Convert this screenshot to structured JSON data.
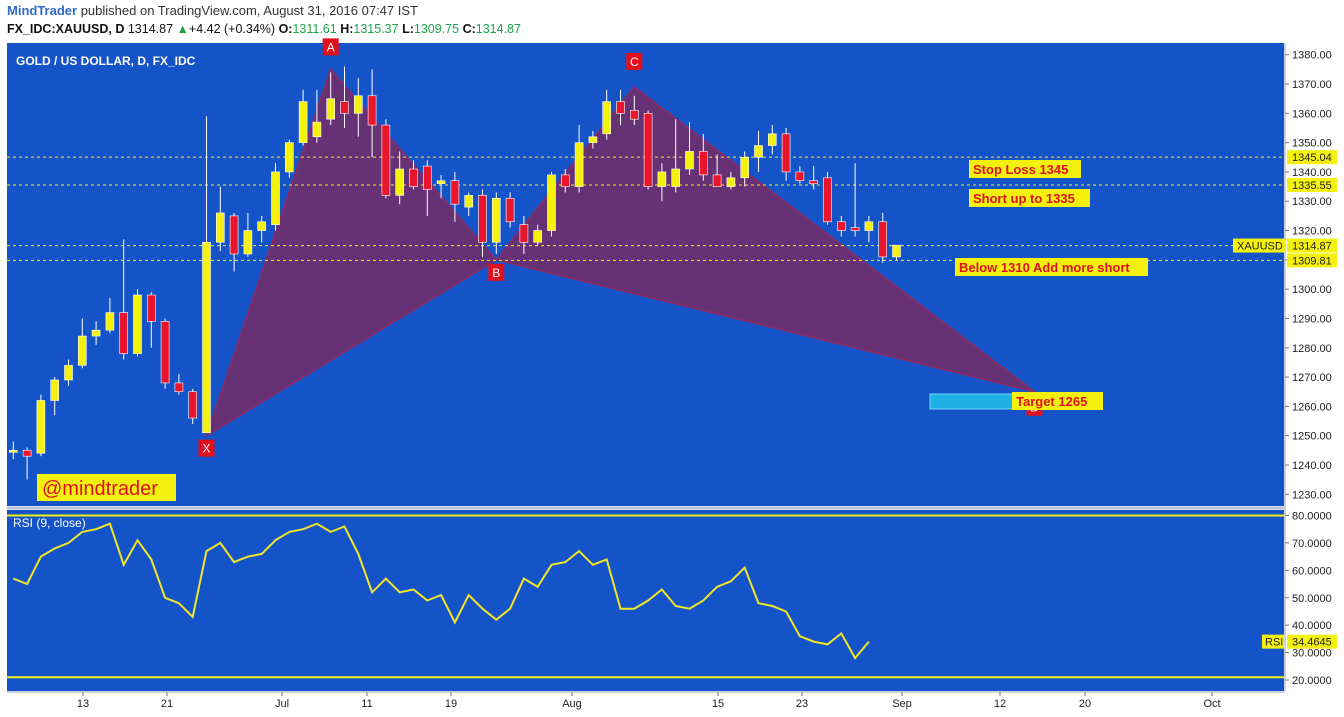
{
  "header": {
    "author": "MindTrader",
    "published_text": "published on TradingView.com, August 31, 2016 07:47 IST",
    "symbol": "FX_IDC:XAUUSD, D",
    "last": "1314.87",
    "change": "+4.42 (+0.34%)",
    "o_label": "O:",
    "o_value": "1311.61",
    "h_label": "H:",
    "h_value": "1315.37",
    "l_label": "L:",
    "l_value": "1309.75",
    "c_label": "C:",
    "c_value": "1314.87"
  },
  "colors": {
    "background": "#1553c8",
    "bull_candle": "#f5f10f",
    "bear_candle": "#e8152d",
    "pattern_fill": "#7a2b63",
    "rsi_line": "#f2e628",
    "label_bg": "#f5f10f",
    "label_text": "#e0101e"
  },
  "chart_data": [
    {
      "type": "candlestick",
      "title": "GOLD / US DOLLAR, D, FX_IDC",
      "ylim": [
        1226,
        1384
      ],
      "y_ticks": [
        1230,
        1240,
        1250,
        1260,
        1270,
        1280,
        1290,
        1300,
        1310,
        1320,
        1330,
        1340,
        1350,
        1360,
        1370,
        1380
      ],
      "x_tick_labels": [
        "13",
        "21",
        "Jul",
        "11",
        "19",
        "Aug",
        "15",
        "23",
        "Sep",
        "12",
        "20",
        "Oct"
      ],
      "candles": [
        {
          "o": 1245,
          "h": 1248,
          "l": 1242,
          "c": 1245
        },
        {
          "o": 1245,
          "h": 1246,
          "l": 1235,
          "c": 1243
        },
        {
          "o": 1244,
          "h": 1264,
          "l": 1243,
          "c": 1262
        },
        {
          "o": 1262,
          "h": 1270,
          "l": 1257,
          "c": 1269
        },
        {
          "o": 1269,
          "h": 1276,
          "l": 1267,
          "c": 1274
        },
        {
          "o": 1274,
          "h": 1290,
          "l": 1273,
          "c": 1284
        },
        {
          "o": 1284,
          "h": 1289,
          "l": 1281,
          "c": 1286
        },
        {
          "o": 1286,
          "h": 1297,
          "l": 1285,
          "c": 1292
        },
        {
          "o": 1292,
          "h": 1317,
          "l": 1276,
          "c": 1278
        },
        {
          "o": 1278,
          "h": 1300,
          "l": 1277,
          "c": 1298
        },
        {
          "o": 1298,
          "h": 1299,
          "l": 1280,
          "c": 1289
        },
        {
          "o": 1289,
          "h": 1290,
          "l": 1266,
          "c": 1268
        },
        {
          "o": 1268,
          "h": 1271,
          "l": 1264,
          "c": 1265
        },
        {
          "o": 1265,
          "h": 1266,
          "l": 1254,
          "c": 1256
        },
        {
          "o": 1251,
          "h": 1359,
          "l": 1251,
          "c": 1316
        },
        {
          "o": 1316,
          "h": 1335,
          "l": 1313,
          "c": 1326
        },
        {
          "o": 1325,
          "h": 1326,
          "l": 1306,
          "c": 1312
        },
        {
          "o": 1312,
          "h": 1326,
          "l": 1311,
          "c": 1320
        },
        {
          "o": 1320,
          "h": 1325,
          "l": 1316,
          "c": 1323
        },
        {
          "o": 1322,
          "h": 1343,
          "l": 1320,
          "c": 1340
        },
        {
          "o": 1340,
          "h": 1351,
          "l": 1338,
          "c": 1350
        },
        {
          "o": 1350,
          "h": 1368,
          "l": 1349,
          "c": 1364
        },
        {
          "o": 1352,
          "h": 1368,
          "l": 1350,
          "c": 1357
        },
        {
          "o": 1358,
          "h": 1374,
          "l": 1356,
          "c": 1365
        },
        {
          "o": 1364,
          "h": 1376,
          "l": 1355,
          "c": 1360
        },
        {
          "o": 1360,
          "h": 1372,
          "l": 1352,
          "c": 1366
        },
        {
          "o": 1366,
          "h": 1375,
          "l": 1345,
          "c": 1356
        },
        {
          "o": 1356,
          "h": 1358,
          "l": 1331,
          "c": 1332
        },
        {
          "o": 1332,
          "h": 1347,
          "l": 1329,
          "c": 1341
        },
        {
          "o": 1341,
          "h": 1344,
          "l": 1334,
          "c": 1335
        },
        {
          "o": 1342,
          "h": 1344,
          "l": 1325,
          "c": 1334
        },
        {
          "o": 1336,
          "h": 1339,
          "l": 1331,
          "c": 1337
        },
        {
          "o": 1337,
          "h": 1340,
          "l": 1323,
          "c": 1329
        },
        {
          "o": 1328,
          "h": 1333,
          "l": 1325,
          "c": 1332
        },
        {
          "o": 1332,
          "h": 1334,
          "l": 1311,
          "c": 1316
        },
        {
          "o": 1316,
          "h": 1333,
          "l": 1312,
          "c": 1331
        },
        {
          "o": 1331,
          "h": 1333,
          "l": 1321,
          "c": 1323
        },
        {
          "o": 1322,
          "h": 1325,
          "l": 1312,
          "c": 1316
        },
        {
          "o": 1316,
          "h": 1322,
          "l": 1315,
          "c": 1320
        },
        {
          "o": 1320,
          "h": 1340,
          "l": 1318,
          "c": 1339
        },
        {
          "o": 1339,
          "h": 1341,
          "l": 1333,
          "c": 1335
        },
        {
          "o": 1335,
          "h": 1356,
          "l": 1333,
          "c": 1350
        },
        {
          "o": 1350,
          "h": 1354,
          "l": 1348,
          "c": 1352
        },
        {
          "o": 1353,
          "h": 1368,
          "l": 1351,
          "c": 1364
        },
        {
          "o": 1364,
          "h": 1368,
          "l": 1356,
          "c": 1360
        },
        {
          "o": 1361,
          "h": 1366,
          "l": 1356,
          "c": 1358
        },
        {
          "o": 1360,
          "h": 1361,
          "l": 1334,
          "c": 1335
        },
        {
          "o": 1335,
          "h": 1343,
          "l": 1330,
          "c": 1340
        },
        {
          "o": 1335,
          "h": 1358,
          "l": 1333,
          "c": 1341
        },
        {
          "o": 1341,
          "h": 1357,
          "l": 1339,
          "c": 1347
        },
        {
          "o": 1347,
          "h": 1353,
          "l": 1337,
          "c": 1339
        },
        {
          "o": 1339,
          "h": 1346,
          "l": 1335,
          "c": 1335
        },
        {
          "o": 1335,
          "h": 1340,
          "l": 1334,
          "c": 1338
        },
        {
          "o": 1338,
          "h": 1347,
          "l": 1335,
          "c": 1345
        },
        {
          "o": 1345,
          "h": 1354,
          "l": 1340,
          "c": 1349
        },
        {
          "o": 1349,
          "h": 1356,
          "l": 1346,
          "c": 1353
        },
        {
          "o": 1353,
          "h": 1355,
          "l": 1337,
          "c": 1340
        },
        {
          "o": 1340,
          "h": 1342,
          "l": 1336,
          "c": 1337
        },
        {
          "o": 1337,
          "h": 1342,
          "l": 1334,
          "c": 1336
        },
        {
          "o": 1338,
          "h": 1340,
          "l": 1322,
          "c": 1323
        },
        {
          "o": 1323,
          "h": 1325,
          "l": 1318,
          "c": 1320
        },
        {
          "o": 1321,
          "h": 1343,
          "l": 1318,
          "c": 1320
        },
        {
          "o": 1320,
          "h": 1325,
          "l": 1316,
          "c": 1323
        },
        {
          "o": 1323,
          "h": 1326,
          "l": 1309,
          "c": 1311
        },
        {
          "o": 1311,
          "h": 1315,
          "l": 1310,
          "c": 1315
        }
      ],
      "pattern_points": {
        "X": {
          "i": 14,
          "price": 1250
        },
        "A": {
          "i": 23,
          "price": 1375
        },
        "B": {
          "i": 35,
          "price": 1310
        },
        "C": {
          "i": 45,
          "price": 1369
        },
        "D": {
          "i": 74,
          "price": 1265
        }
      },
      "levels": [
        {
          "price": 1345.04,
          "label": "1345.04"
        },
        {
          "price": 1335.55,
          "label": "1335.55"
        },
        {
          "price": 1314.87,
          "label": "1314.87",
          "prefix": "XAUUSD"
        },
        {
          "price": 1309.81,
          "label": "1309.81"
        }
      ],
      "annotations": {
        "stop_loss": "Stop Loss 1345",
        "short": "Short up to 1335",
        "below": "Below 1310 Add more short",
        "target": "Target 1265",
        "watermark": "@mindtrader"
      }
    },
    {
      "type": "line",
      "title": "RSI (9, close)",
      "ylim": [
        16,
        82
      ],
      "y_ticks": [
        20,
        30,
        40,
        50,
        60,
        70,
        80
      ],
      "y_tick_labels": [
        "20.0000",
        "30.0000",
        "40.0000",
        "50.0000",
        "60.0000",
        "70.0000",
        "80.0000"
      ],
      "bands": [
        80,
        21
      ],
      "current": {
        "label": "RSI",
        "value": "34.4645"
      },
      "values": [
        57,
        55,
        65,
        68,
        70,
        74,
        75,
        77,
        62,
        71,
        64,
        50,
        48,
        43,
        67,
        70,
        63,
        65,
        66,
        71,
        74,
        75,
        77,
        74,
        76,
        66,
        52,
        57,
        52,
        53,
        49,
        51,
        41,
        51,
        46,
        42,
        46,
        57,
        54,
        62,
        63,
        67,
        62,
        64,
        46,
        46,
        49,
        53,
        47,
        46,
        49,
        54,
        56,
        61,
        48,
        47,
        45,
        36,
        34,
        33,
        37,
        28,
        34
      ]
    }
  ]
}
